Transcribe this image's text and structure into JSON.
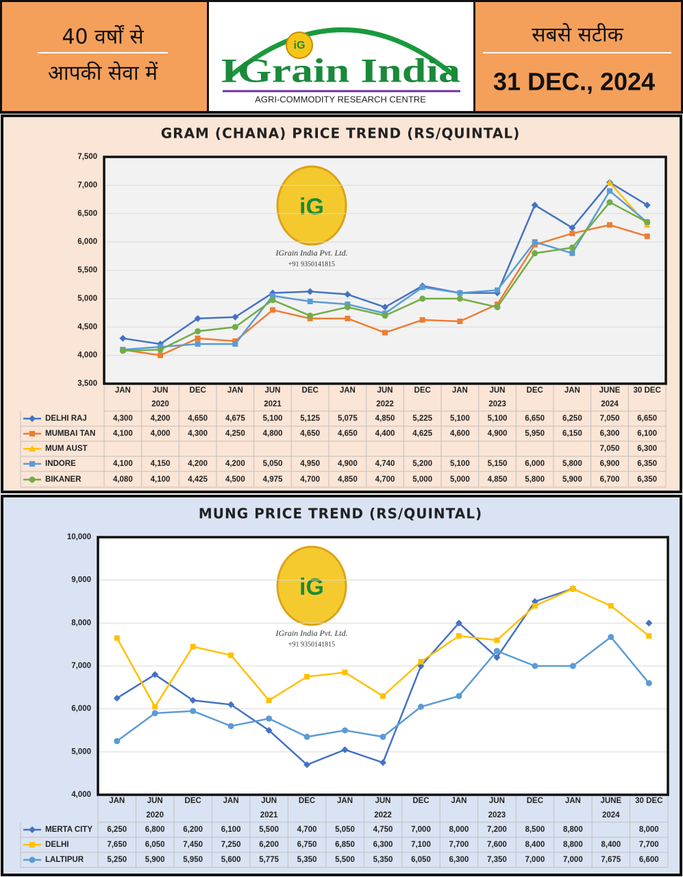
{
  "header": {
    "left_line1": "40 वर्षों से",
    "left_line2": "आपकी सेवा में",
    "logo": "iG",
    "brand": "IGrain India",
    "tagline": "AGRI-COMMODITY RESEARCH CENTRE",
    "right_line1": "सबसे सटीक",
    "date": "31 DEC., 2024"
  },
  "watermark": {
    "logo": "iG",
    "company": "IGrain India Pvt. Ltd.",
    "phone": "+91 9350141815"
  },
  "chart_data": [
    {
      "type": "line",
      "title": "GRAM (CHANA) PRICE TREND (RS/QUINTAL)",
      "categories": [
        "JAN",
        "JUN",
        "DEC",
        "JAN",
        "JUN",
        "DEC",
        "JAN",
        "JUN",
        "DEC",
        "JAN",
        "JUN",
        "DEC",
        "JAN",
        "JUNE",
        "30 DEC"
      ],
      "year_labels": [
        null,
        "2020",
        null,
        null,
        "2021",
        null,
        null,
        "2022",
        null,
        null,
        "2023",
        null,
        null,
        "2024",
        null
      ],
      "ylim": [
        3500,
        7500
      ],
      "yticks": [
        {
          "value": 3500,
          "label": "3,500"
        },
        {
          "value": 4000,
          "label": "4,000"
        },
        {
          "value": 4500,
          "label": "4,500"
        },
        {
          "value": 5000,
          "label": "5,000"
        },
        {
          "value": 5500,
          "label": "5,500"
        },
        {
          "value": 6000,
          "label": "6,000"
        },
        {
          "value": 6500,
          "label": "6,500"
        },
        {
          "value": 7000,
          "label": "7,000"
        },
        {
          "value": 7500,
          "label": "7,500"
        }
      ],
      "grid": true,
      "plot_color": "#f2f2f2",
      "series": [
        {
          "name": "DELHI RAJ",
          "color": "#4472c4",
          "marker": "diamond",
          "values": [
            4300,
            4200,
            4650,
            4675,
            5100,
            5125,
            5075,
            4850,
            5225,
            5100,
            5100,
            6650,
            6250,
            7050,
            6650
          ],
          "value_labels": [
            "4,300",
            "4,200",
            "4,650",
            "4,675",
            "5,100",
            "5,125",
            "5,075",
            "4,850",
            "5,225",
            "5,100",
            "5,100",
            "6,650",
            "6,250",
            "7,050",
            "6,650"
          ]
        },
        {
          "name": "MUMBAI TAN",
          "color": "#ed7d31",
          "marker": "square",
          "values": [
            4100,
            4000,
            4300,
            4250,
            4800,
            4650,
            4650,
            4400,
            4625,
            4600,
            4900,
            5950,
            6150,
            6300,
            6100
          ],
          "value_labels": [
            "4,100",
            "4,000",
            "4,300",
            "4,250",
            "4,800",
            "4,650",
            "4,650",
            "4,400",
            "4,625",
            "4,600",
            "4,900",
            "5,950",
            "6,150",
            "6,300",
            "6,100"
          ]
        },
        {
          "name": "MUM AUST",
          "color": "#ffc000",
          "marker": "triangle",
          "values": [
            null,
            null,
            null,
            null,
            null,
            null,
            null,
            null,
            null,
            null,
            null,
            null,
            null,
            7050,
            6300
          ],
          "value_labels": [
            null,
            null,
            null,
            null,
            null,
            null,
            null,
            null,
            null,
            null,
            null,
            null,
            null,
            "7,050",
            "6,300"
          ]
        },
        {
          "name": "INDORE",
          "color": "#5b9bd5",
          "marker": "square",
          "values": [
            4100,
            4150,
            4200,
            4200,
            5050,
            4950,
            4900,
            4740,
            5200,
            5100,
            5150,
            6000,
            5800,
            6900,
            6350
          ],
          "value_labels": [
            "4,100",
            "4,150",
            "4,200",
            "4,200",
            "5,050",
            "4,950",
            "4,900",
            "4,740",
            "5,200",
            "5,100",
            "5,150",
            "6,000",
            "5,800",
            "6,900",
            "6,350"
          ]
        },
        {
          "name": "BIKANER",
          "color": "#70ad47",
          "marker": "circle",
          "values": [
            4080,
            4100,
            4425,
            4500,
            4975,
            4700,
            4850,
            4700,
            5000,
            5000,
            4850,
            5800,
            5900,
            6700,
            6350
          ],
          "value_labels": [
            "4,080",
            "4,100",
            "4,425",
            "4,500",
            "4,975",
            "4,700",
            "4,850",
            "4,700",
            "5,000",
            "5,000",
            "4,850",
            "5,800",
            "5,900",
            "6,700",
            "6,350"
          ]
        }
      ]
    },
    {
      "type": "line",
      "title": "MUNG PRICE TREND (RS/QUINTAL)",
      "categories": [
        "JAN",
        "JUN",
        "DEC",
        "JAN",
        "JUN",
        "DEC",
        "JAN",
        "JUN",
        "DEC",
        "JAN",
        "JUN",
        "DEC",
        "JAN",
        "JUNE",
        "30 DEC"
      ],
      "year_labels": [
        null,
        "2020",
        null,
        null,
        "2021",
        null,
        null,
        "2022",
        null,
        null,
        "2023",
        null,
        null,
        "2024",
        null
      ],
      "ylim": [
        4000,
        10000
      ],
      "yticks": [
        {
          "value": 4000,
          "label": "4,000"
        },
        {
          "value": 5000,
          "label": "5,000"
        },
        {
          "value": 6000,
          "label": "6,000"
        },
        {
          "value": 7000,
          "label": "7,000"
        },
        {
          "value": 8000,
          "label": "8,000"
        },
        {
          "value": 9000,
          "label": "9,000"
        },
        {
          "value": 10000,
          "label": "10,000"
        }
      ],
      "grid": true,
      "plot_color": "#ffffff",
      "series": [
        {
          "name": "MERTA CITY",
          "color": "#4472c4",
          "marker": "diamond",
          "values": [
            6250,
            6800,
            6200,
            6100,
            5500,
            4700,
            5050,
            4750,
            7000,
            8000,
            7200,
            8500,
            8800,
            null,
            8000
          ],
          "value_labels": [
            "6,250",
            "6,800",
            "6,200",
            "6,100",
            "5,500",
            "4,700",
            "5,050",
            "4,750",
            "7,000",
            "8,000",
            "7,200",
            "8,500",
            "8,800",
            null,
            "8,000"
          ]
        },
        {
          "name": "DELHI",
          "color": "#ffc000",
          "marker": "square",
          "values": [
            7650,
            6050,
            7450,
            7250,
            6200,
            6750,
            6850,
            6300,
            7100,
            7700,
            7600,
            8400,
            8800,
            8400,
            7700
          ],
          "value_labels": [
            "7,650",
            "6,050",
            "7,450",
            "7,250",
            "6,200",
            "6,750",
            "6,850",
            "6,300",
            "7,100",
            "7,700",
            "7,600",
            "8,400",
            "8,800",
            "8,400",
            "7,700"
          ]
        },
        {
          "name": "LALTIPUR",
          "color": "#5b9bd5",
          "marker": "circle",
          "values": [
            5250,
            5900,
            5950,
            5600,
            5775,
            5350,
            5500,
            5350,
            6050,
            6300,
            7350,
            7000,
            7000,
            7675,
            6600
          ],
          "value_labels": [
            "5,250",
            "5,900",
            "5,950",
            "5,600",
            "5,775",
            "5,350",
            "5,500",
            "5,350",
            "6,050",
            "6,300",
            "7,350",
            "7,000",
            "7,000",
            "7,675",
            "6,600"
          ]
        }
      ]
    }
  ]
}
